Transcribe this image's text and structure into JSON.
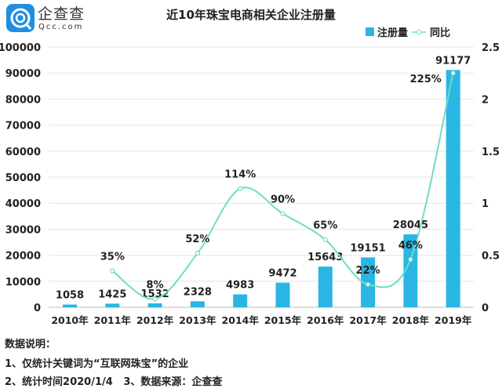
{
  "logo": {
    "name": "企查查",
    "url_text": "Qcc.com"
  },
  "chart_data": {
    "type": "bar+line",
    "title": "近10年珠宝电商相关企业注册量",
    "categories": [
      "2010年",
      "2011年",
      "2012年",
      "2013年",
      "2014年",
      "2015年",
      "2016年",
      "2017年",
      "2018年",
      "2019年"
    ],
    "series": [
      {
        "name": "注册量",
        "type": "bar",
        "axis": "left",
        "color": "#29b6e3",
        "values": [
          1058,
          1425,
          1532,
          2328,
          4983,
          9472,
          15643,
          19151,
          28045,
          91177
        ],
        "labels": [
          "1058",
          "1425",
          "1532",
          "2328",
          "4983",
          "9472",
          "15643",
          "19151",
          "28045",
          "91177"
        ]
      },
      {
        "name": "同比",
        "type": "line",
        "axis": "right",
        "color": "#6fdcc9",
        "values": [
          null,
          0.35,
          0.08,
          0.52,
          1.14,
          0.9,
          0.65,
          0.22,
          0.46,
          2.25
        ],
        "labels": [
          "",
          "35%",
          "8%",
          "52%",
          "114%",
          "90%",
          "65%",
          "22%",
          "46%",
          "225%"
        ]
      }
    ],
    "left_axis": {
      "range": [
        0,
        100000
      ],
      "ticks": [
        "0",
        "10000",
        "20000",
        "30000",
        "40000",
        "50000",
        "60000",
        "70000",
        "80000",
        "90000",
        "100000"
      ]
    },
    "right_axis": {
      "range": [
        0,
        2.5
      ],
      "ticks": [
        "0",
        "0.5",
        "1",
        "1.5",
        "2",
        "2.5"
      ]
    },
    "grid": true,
    "legend": "top-right"
  },
  "notes": {
    "heading": "数据说明：",
    "line1": "1、仅统计关键词为“互联网珠宝”的企业",
    "line2": "2、统计时间2020/1/4   3、数据来源：企查查"
  }
}
